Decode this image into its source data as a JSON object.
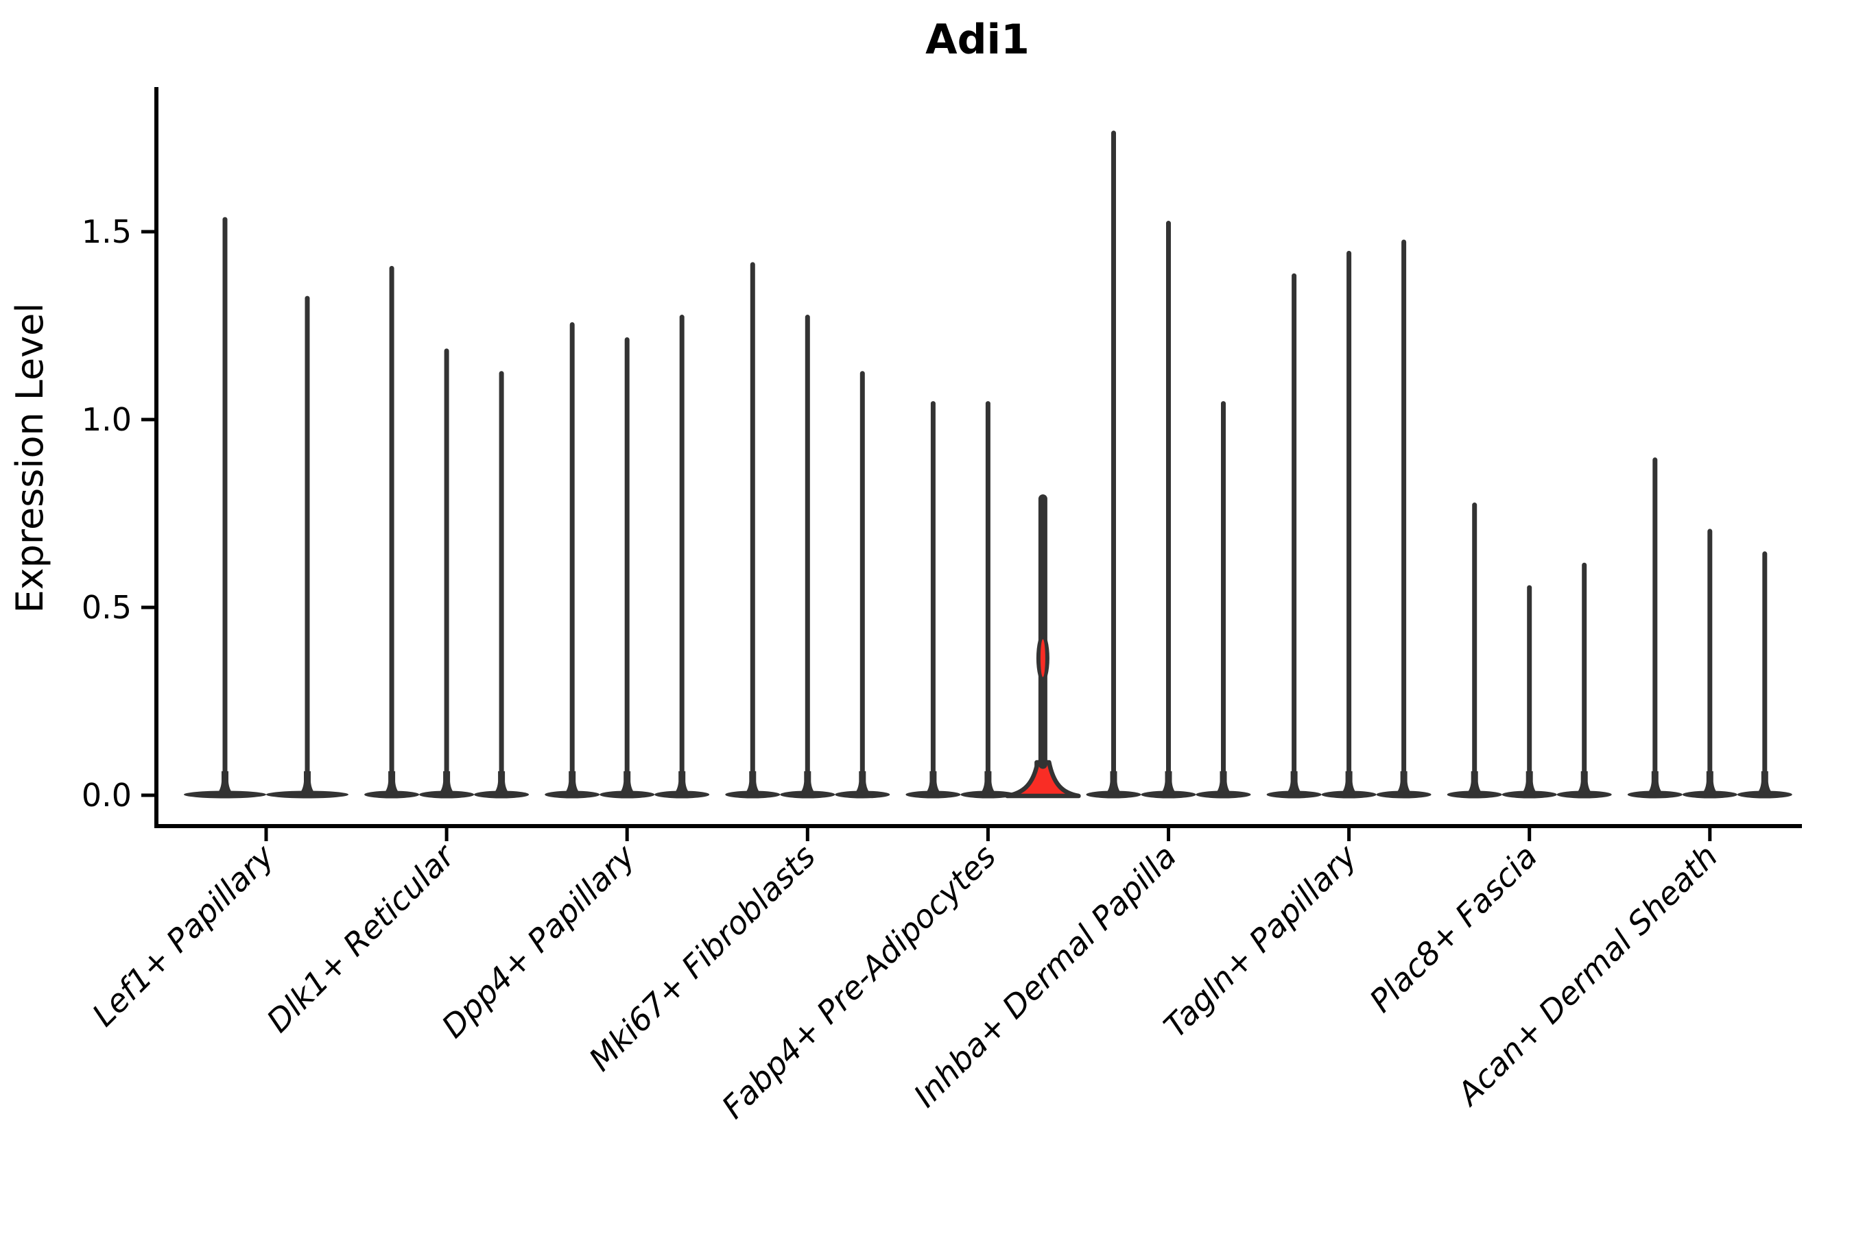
{
  "title": "Adi1",
  "y_axis": {
    "label": "Expression Level",
    "tick_labels": [
      "0.0",
      "0.5",
      "1.0",
      "1.5"
    ]
  },
  "chart_data": {
    "type": "violin",
    "title": "Adi1",
    "xlabel": "",
    "ylabel": "Expression Level",
    "ylim": [
      -0.08,
      1.88
    ],
    "yticks": [
      0.0,
      0.5,
      1.0,
      1.5
    ],
    "ytick_labels": [
      "0.0",
      "0.5",
      "1.0",
      "1.5"
    ],
    "grid": false,
    "legend": "none",
    "categories": [
      "Lef1+ Papillary",
      "Dlk1+ Reticular",
      "Dpp4+ Papillary",
      "Mki67+ Fibroblasts",
      "Fabp4+ Pre-Adipocytes",
      "Inhba+ Dermal Papilla",
      "Tagln+ Papillary",
      "Plac8+ Fascia",
      "Acan+ Dermal Sheath"
    ],
    "series": [
      {
        "category": "Lef1+ Papillary",
        "violins": [
          {
            "max": 1.54
          },
          {
            "max": 1.33
          }
        ]
      },
      {
        "category": "Dlk1+ Reticular",
        "violins": [
          {
            "max": 1.41
          },
          {
            "max": 1.19
          },
          {
            "max": 1.13
          }
        ]
      },
      {
        "category": "Dpp4+ Papillary",
        "violins": [
          {
            "max": 1.26
          },
          {
            "max": 1.22
          },
          {
            "max": 1.28
          }
        ]
      },
      {
        "category": "Mki67+ Fibroblasts",
        "violins": [
          {
            "max": 1.42
          },
          {
            "max": 1.28
          },
          {
            "max": 1.13
          }
        ]
      },
      {
        "category": "Fabp4+ Pre-Adipocytes",
        "violins": [
          {
            "max": 1.05
          },
          {
            "max": 1.05
          },
          {
            "max": 0.8,
            "highlight": true,
            "bulge": [
              0.3,
              0.43
            ]
          }
        ]
      },
      {
        "category": "Inhba+ Dermal Papilla",
        "violins": [
          {
            "max": 1.77
          },
          {
            "max": 1.53
          },
          {
            "max": 1.05
          }
        ]
      },
      {
        "category": "Tagln+ Papillary",
        "violins": [
          {
            "max": 1.39
          },
          {
            "max": 1.45
          },
          {
            "max": 1.48
          }
        ]
      },
      {
        "category": "Plac8+ Fascia",
        "violins": [
          {
            "max": 0.78
          },
          {
            "max": 0.56
          },
          {
            "max": 0.62
          }
        ]
      },
      {
        "category": "Acan+ Dermal Sheath",
        "violins": [
          {
            "max": 0.9
          },
          {
            "max": 0.71
          },
          {
            "max": 0.65
          }
        ]
      }
    ],
    "colors": {
      "outline": "#333333",
      "highlight_fill": "#f92d25",
      "axis": "#000000",
      "background": "#ffffff"
    }
  }
}
